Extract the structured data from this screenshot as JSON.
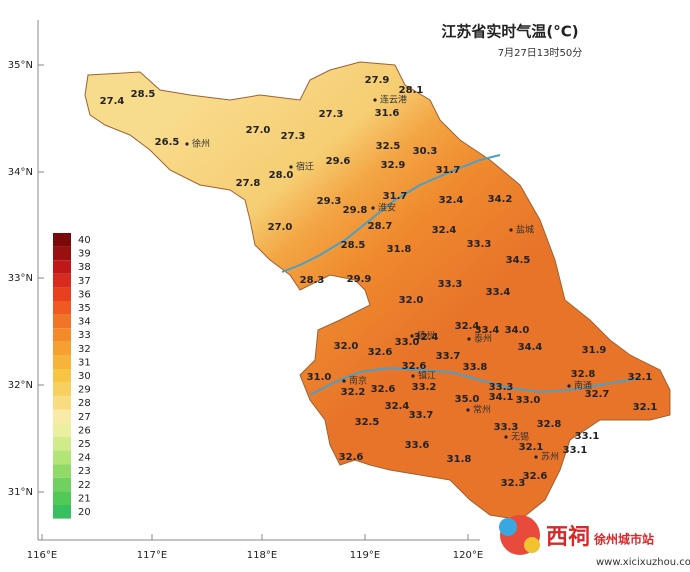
{
  "header": {
    "title": "江苏省实时气温(°C)",
    "subtitle": "7月27日13时50分"
  },
  "lat_labels": [
    "35°N",
    "34°N",
    "33°N",
    "32°N",
    "31°N"
  ],
  "lon_labels": [
    "116°E",
    "117°E",
    "118°E",
    "119°E",
    "120°E"
  ],
  "legend": [
    40,
    39,
    38,
    37,
    36,
    35,
    34,
    33,
    32,
    31,
    30,
    29,
    28,
    27,
    26,
    25,
    24,
    23,
    22,
    21,
    20
  ],
  "cities": [
    "徐州",
    "宿迁",
    "连云港",
    "淮安",
    "盐城",
    "泰州",
    "扬州",
    "南京",
    "镇江",
    "常州",
    "无锡",
    "苏州",
    "南通"
  ],
  "readings": [
    "27.4",
    "28.5",
    "26.5",
    "27.0",
    "27.3",
    "27.3",
    "27.9",
    "28.1",
    "31.6",
    "32.5",
    "30.3",
    "29.6",
    "32.9",
    "31.7",
    "28.0",
    "27.8",
    "29.3",
    "29.8",
    "31.7",
    "32.4",
    "34.2",
    "28.7",
    "27.0",
    "32.4",
    "33.3",
    "31.8",
    "28.5",
    "34.5",
    "29.9",
    "28.3",
    "33.3",
    "33.4",
    "32.0",
    "32.4",
    "33.4",
    "34.0",
    "32.0",
    "33.0",
    "32.4",
    "32.6",
    "34.4",
    "31.9",
    "32.6",
    "33.7",
    "33.8",
    "31.0",
    "32.2",
    "32.6",
    "33.2",
    "33.3",
    "32.8",
    "32.1",
    "32.7",
    "35.0",
    "34.1",
    "33.0",
    "32.4",
    "33.7",
    "32.1",
    "32.5",
    "33.3",
    "32.8",
    "33.1",
    "33.6",
    "32.1",
    "33.1",
    "32.6",
    "31.8",
    "32.6",
    "32.3"
  ],
  "watermark": {
    "brand": "西祠",
    "site": "徐州城市站",
    "url": "www.xicixuzhou.com"
  }
}
